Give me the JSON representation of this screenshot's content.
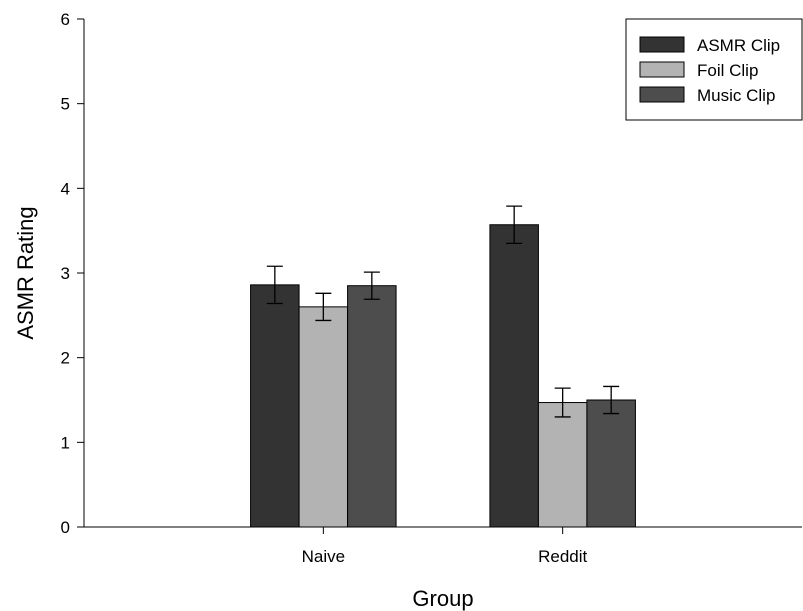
{
  "chart_data": {
    "type": "bar",
    "title": "",
    "xlabel": "Group",
    "ylabel": "ASMR Rating",
    "categories": [
      "Naive",
      "Reddit"
    ],
    "ylim": [
      0,
      6
    ],
    "yticks": [
      "0",
      "1",
      "2",
      "3",
      "4",
      "5",
      "6"
    ],
    "grid": false,
    "legend_position": "top-right",
    "series": [
      {
        "name": "ASMR Clip",
        "color": "#333333",
        "values": [
          2.86,
          3.57
        ],
        "errors": [
          0.22,
          0.22
        ]
      },
      {
        "name": "Foil Clip",
        "color": "#b3b3b3",
        "values": [
          2.6,
          1.47
        ],
        "errors": [
          0.16,
          0.17
        ]
      },
      {
        "name": "Music Clip",
        "color": "#4d4d4d",
        "values": [
          2.85,
          1.5
        ],
        "errors": [
          0.16,
          0.16
        ]
      }
    ]
  }
}
